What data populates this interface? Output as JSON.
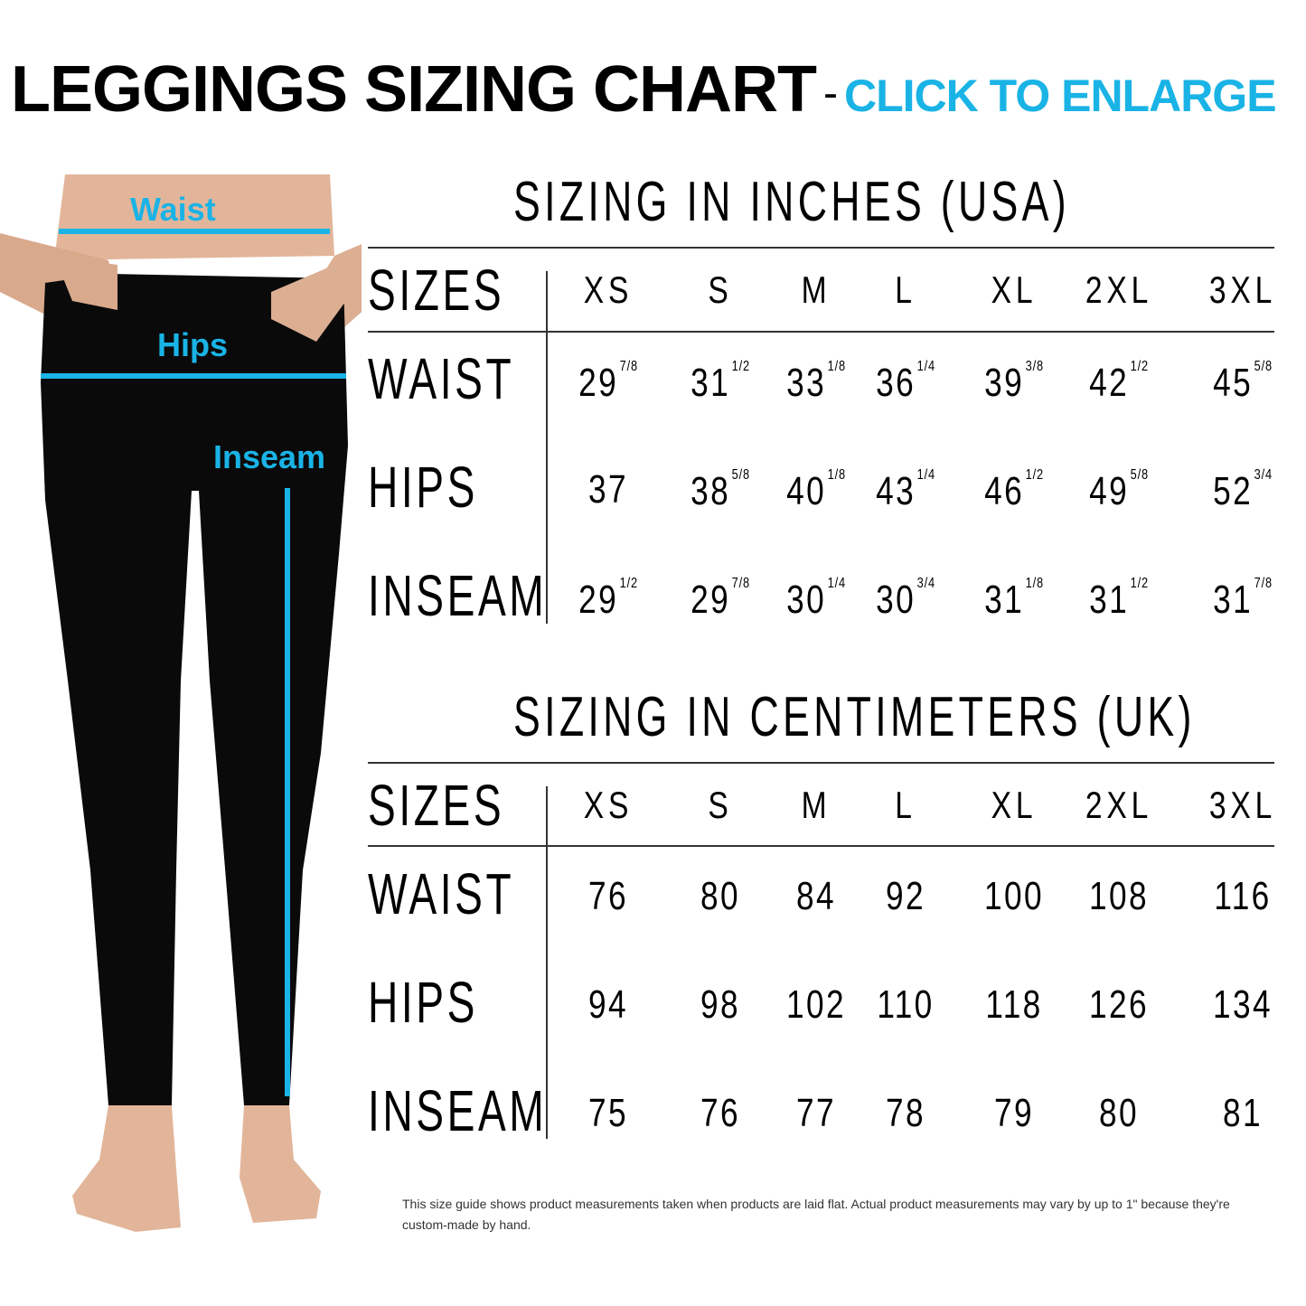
{
  "header": {
    "title": "LEGGINGS SIZING CHART",
    "separator": "-",
    "enlarge_link": "CLICK TO ENLARGE"
  },
  "colors": {
    "accent": "#1ab3e6",
    "text": "#000000",
    "leggings": "#0a0a0a",
    "skin": "#e2b59a"
  },
  "illustration": {
    "labels": {
      "waist": "Waist",
      "hips": "Hips",
      "inseam": "Inseam"
    }
  },
  "sizes": [
    "XS",
    "S",
    "M",
    "L",
    "XL",
    "2XL",
    "3XL"
  ],
  "inches": {
    "title": "SIZING IN INCHES (USA)",
    "sizes_label": "SIZES",
    "rows": [
      {
        "label": "WAIST",
        "values": [
          {
            "w": "29",
            "f": "7/8"
          },
          {
            "w": "31",
            "f": "1/2"
          },
          {
            "w": "33",
            "f": "1/8"
          },
          {
            "w": "36",
            "f": "1/4"
          },
          {
            "w": "39",
            "f": "3/8"
          },
          {
            "w": "42",
            "f": "1/2"
          },
          {
            "w": "45",
            "f": "5/8"
          }
        ]
      },
      {
        "label": "HIPS",
        "values": [
          {
            "w": "37",
            "f": ""
          },
          {
            "w": "38",
            "f": "5/8"
          },
          {
            "w": "40",
            "f": "1/8"
          },
          {
            "w": "43",
            "f": "1/4"
          },
          {
            "w": "46",
            "f": "1/2"
          },
          {
            "w": "49",
            "f": "5/8"
          },
          {
            "w": "52",
            "f": "3/4"
          }
        ]
      },
      {
        "label": "INSEAM",
        "values": [
          {
            "w": "29",
            "f": "1/2"
          },
          {
            "w": "29",
            "f": "7/8"
          },
          {
            "w": "30",
            "f": "1/4"
          },
          {
            "w": "30",
            "f": "3/4"
          },
          {
            "w": "31",
            "f": "1/8"
          },
          {
            "w": "31",
            "f": "1/2"
          },
          {
            "w": "31",
            "f": "7/8"
          }
        ]
      }
    ]
  },
  "centimeters": {
    "title": "SIZING IN CENTIMETERS (UK)",
    "sizes_label": "SIZES",
    "rows": [
      {
        "label": "WAIST",
        "values": [
          {
            "w": "76"
          },
          {
            "w": "80"
          },
          {
            "w": "84"
          },
          {
            "w": "92"
          },
          {
            "w": "100"
          },
          {
            "w": "108"
          },
          {
            "w": "116"
          }
        ]
      },
      {
        "label": "HIPS",
        "values": [
          {
            "w": "94"
          },
          {
            "w": "98"
          },
          {
            "w": "102"
          },
          {
            "w": "110"
          },
          {
            "w": "118"
          },
          {
            "w": "126"
          },
          {
            "w": "134"
          }
        ]
      },
      {
        "label": "INSEAM",
        "values": [
          {
            "w": "75"
          },
          {
            "w": "76"
          },
          {
            "w": "77"
          },
          {
            "w": "78"
          },
          {
            "w": "79"
          },
          {
            "w": "80"
          },
          {
            "w": "81"
          }
        ]
      }
    ]
  },
  "footnote": "This size guide shows product measurements taken when products are laid flat. Actual product measurements may vary by up to 1\" because they're custom-made by hand."
}
